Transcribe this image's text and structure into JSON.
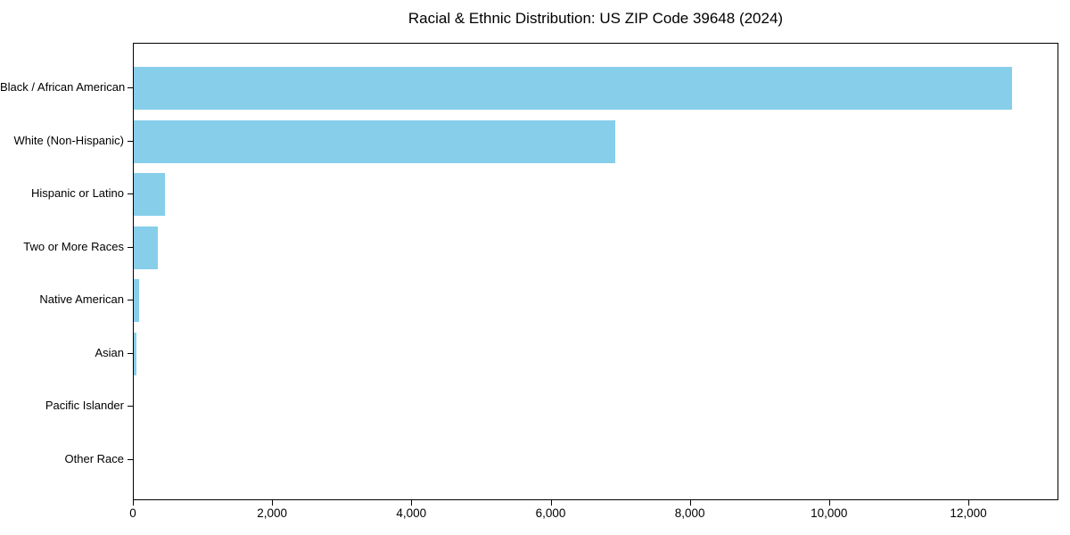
{
  "chart_data": {
    "type": "bar",
    "orientation": "horizontal",
    "title": "Racial & Ethnic Distribution: US ZIP Code 39648 (2024)",
    "categories": [
      "Black / African American",
      "White (Non-Hispanic)",
      "Hispanic or Latino",
      "Two or More Races",
      "Native American",
      "Asian",
      "Pacific Islander",
      "Other Race"
    ],
    "values": [
      12620,
      6910,
      450,
      345,
      80,
      40,
      0,
      0
    ],
    "xlabel": "",
    "ylabel": "",
    "xlim": [
      0,
      13294
    ],
    "x_ticks": [
      0,
      2000,
      4000,
      6000,
      8000,
      10000,
      12000
    ],
    "x_tick_labels": [
      "0",
      "2,000",
      "4,000",
      "6,000",
      "8,000",
      "10,000",
      "12,000"
    ],
    "bar_color": "#87CEEB",
    "grid": false,
    "legend_position": "none",
    "background_color": "#ffffff",
    "text_color": "#000000",
    "spine_color": "#000000"
  }
}
